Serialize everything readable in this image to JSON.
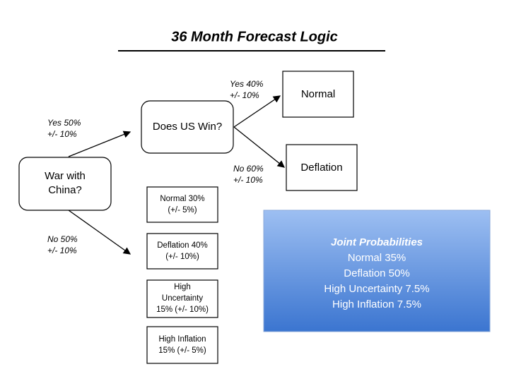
{
  "header": {
    "title": "36 Month Forecast Logic"
  },
  "nodes": [
    {
      "lines": [
        "War with",
        "China?"
      ]
    },
    {
      "lines": [
        "Does US Win?"
      ]
    },
    {
      "lines": [
        "Normal"
      ]
    },
    {
      "lines": [
        "Deflation"
      ]
    },
    {
      "lines": [
        "Normal 30%",
        "(+/- 5%)"
      ]
    },
    {
      "lines": [
        "Deflation 40%",
        "(+/- 10%)"
      ]
    },
    {
      "lines": [
        "High",
        "Uncertainty",
        "15% (+/- 10%)"
      ]
    },
    {
      "lines": [
        "High Inflation",
        "15%  (+/- 5%)"
      ]
    }
  ],
  "edges": [
    {
      "lines": [
        "Yes 50%",
        "+/- 10%"
      ]
    },
    {
      "lines": [
        "No 50%",
        "+/- 10%"
      ]
    },
    {
      "lines": [
        "Yes 40%",
        "+/- 10%"
      ]
    },
    {
      "lines": [
        "No 60%",
        "+/- 10%"
      ]
    }
  ],
  "joint": {
    "title": "Joint Probabilities",
    "lines": [
      "Normal 35%",
      "Deflation 50%",
      "High Uncertainty 7.5%",
      "High Inflation 7.5%"
    ]
  }
}
